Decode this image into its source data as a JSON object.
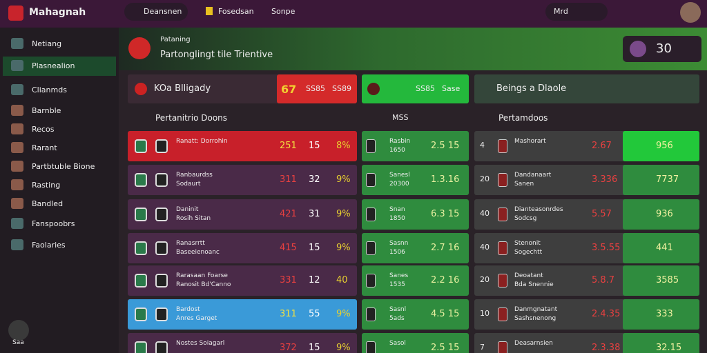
{
  "header": {
    "logo": "Mahagnah",
    "search": "Deansnen",
    "links": [
      "Fosedsan",
      "Sonpe"
    ],
    "user": "Mrd"
  },
  "sidebar": {
    "items": [
      "Netiang",
      "Plasnealion",
      "Clianmds",
      "Barnble",
      "Recos",
      "Rarant",
      "Partbtuble Bione",
      "Rasting",
      "Bandled",
      "Fanspoobrs",
      "Faolaries"
    ],
    "footer": "Saa"
  },
  "banner": {
    "title": "Pataning",
    "subtitle": "Partonglingt tile Trientive",
    "score": "30"
  },
  "columns": {
    "left": {
      "title": "KOa Blligady",
      "stats": [
        "67",
        "SS85",
        "SS89"
      ],
      "sub": "Pertanitrio Doons"
    },
    "middle": {
      "stats": [
        "SS85",
        "Sase"
      ],
      "sub": "MSS"
    },
    "right": {
      "title": "Beings a Dlaole",
      "sub": "Pertamdoos"
    }
  },
  "rows": [
    {
      "left": [
        "Ranatt: Dorrohin",
        "251",
        "15",
        "8%"
      ],
      "middle": [
        "Rasbin",
        "1650",
        "2.5 15"
      ],
      "right": [
        "4",
        "Mashorart",
        "2.67",
        "956"
      ]
    },
    {
      "left": [
        "Ranbaurdss",
        "Sodaurt",
        "311",
        "32",
        "9%"
      ],
      "middle": [
        "Sanesl",
        "20300",
        "1.3.16"
      ],
      "right": [
        "20",
        "Dandanaart",
        "Sanen",
        "3.336",
        "7737"
      ]
    },
    {
      "left": [
        "Daninit",
        "Rosih Sitan",
        "421",
        "31",
        "9%"
      ],
      "middle": [
        "Snan",
        "1850",
        "6.3 15"
      ],
      "right": [
        "40",
        "Dianteasonrdes",
        "Sodcsg",
        "5.57",
        "936"
      ]
    },
    {
      "left": [
        "Ranasrrtt",
        "Baseeienoanc",
        "415",
        "15",
        "9%"
      ],
      "middle": [
        "Sasnn",
        "1506",
        "2.7 16"
      ],
      "right": [
        "40",
        "Stenonit",
        "Sogechtt",
        "3.5.55",
        "441"
      ]
    },
    {
      "left": [
        "Rarasaan Foarse",
        "Ranosit Bd'Canno",
        "331",
        "12",
        "40"
      ],
      "middle": [
        "Sanes",
        "1535",
        "2.2 16"
      ],
      "right": [
        "20",
        "Deoatant",
        "Bda Snennie",
        "5.8.7",
        "3585"
      ]
    },
    {
      "left": [
        "Bardost",
        "Anres Garget",
        "311",
        "55",
        "9%"
      ],
      "middle": [
        "Sasnl",
        "5ads",
        "4.5 15"
      ],
      "right": [
        "10",
        "Danmgnatant",
        "Sashsnenong",
        "2.4.35",
        "333"
      ]
    },
    {
      "left": [
        "Nostes Soiagarl",
        "372",
        "15",
        "9%"
      ],
      "middle": [
        "Sasol",
        "2.5 15"
      ],
      "right": [
        "7",
        "Deasarnsien",
        "2.3.38",
        "32.15"
      ]
    }
  ]
}
